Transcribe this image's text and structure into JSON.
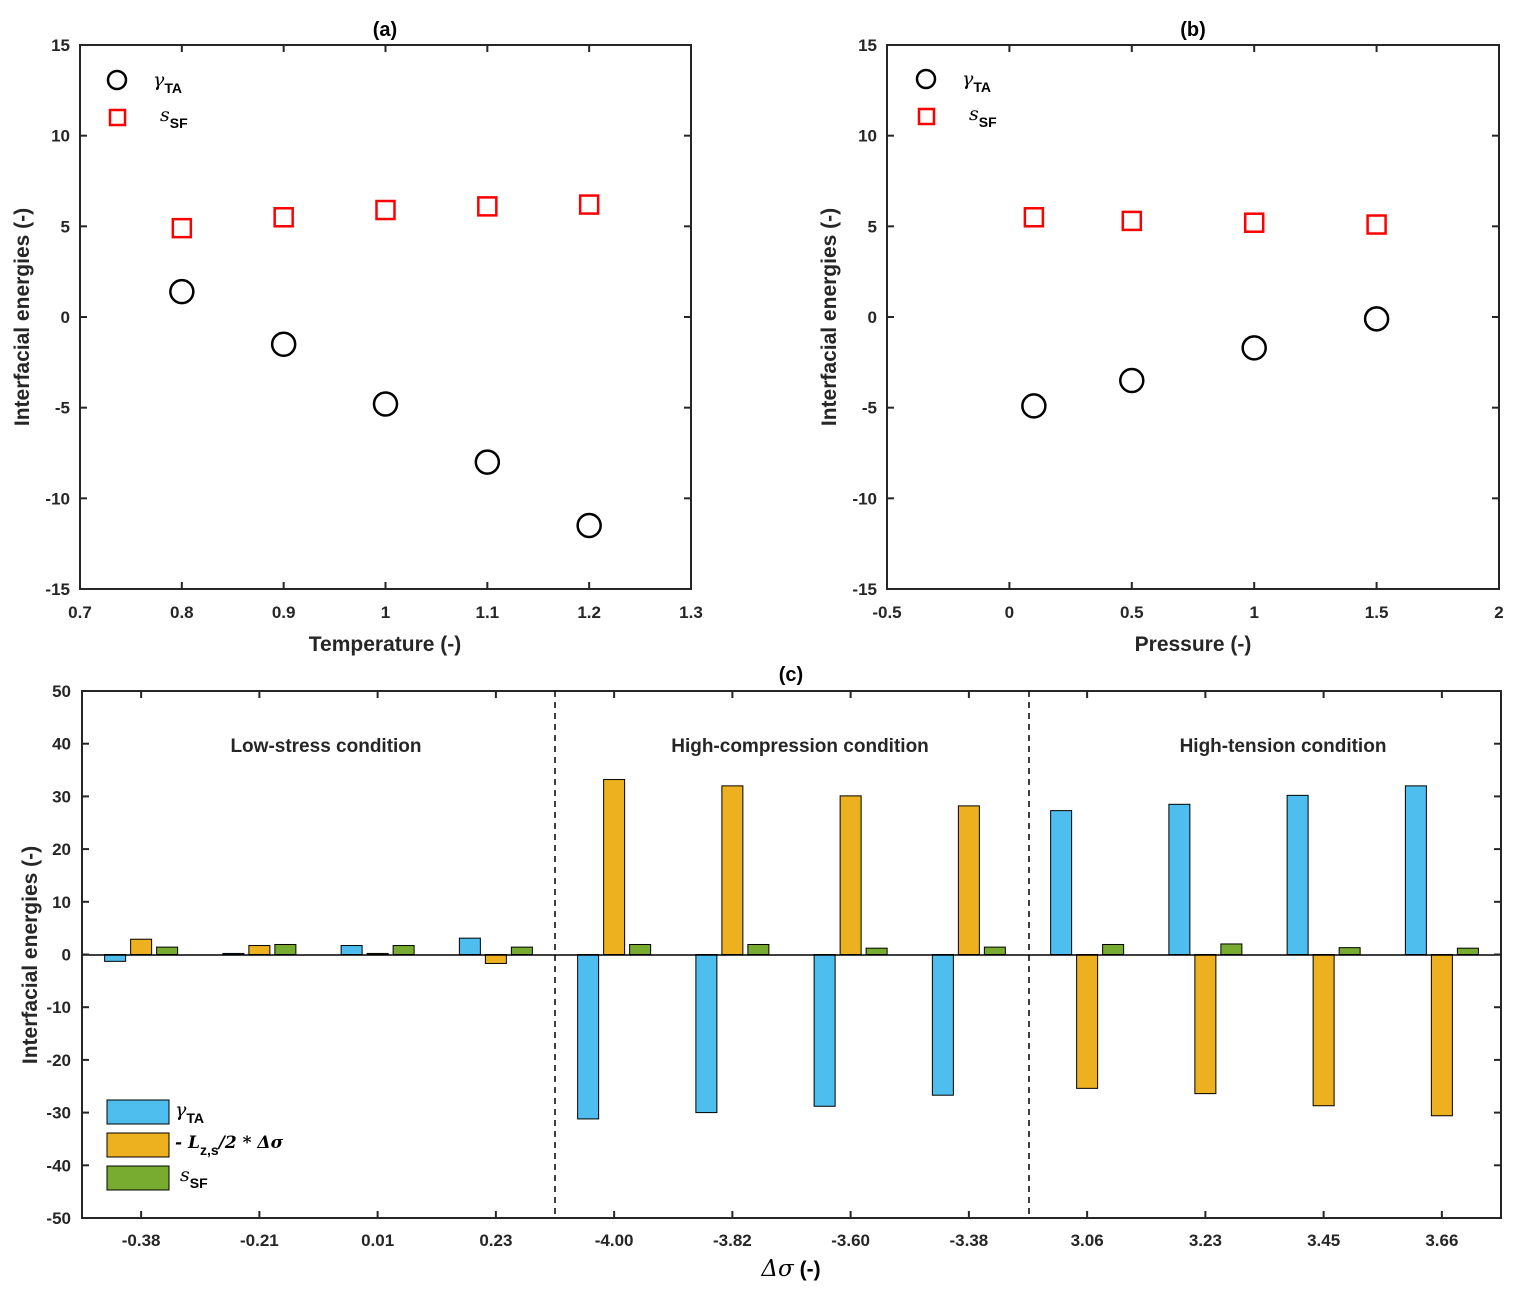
{
  "chart_data": [
    {
      "id": "a",
      "type": "scatter",
      "title": "(a)",
      "xlabel": "Temperature (-)",
      "ylabel": "Interfacial energies (-)",
      "xlim": [
        0.7,
        1.3
      ],
      "ylim": [
        -15,
        15
      ],
      "xticks": [
        0.7,
        0.8,
        0.9,
        1.0,
        1.1,
        1.2,
        1.3
      ],
      "xtick_labels": [
        "0.7",
        "0.8",
        "0.9",
        "1",
        "1.1",
        "1.2",
        "1.3"
      ],
      "yticks": [
        -15,
        -10,
        -5,
        0,
        5,
        10,
        15
      ],
      "ytick_labels": [
        "-15",
        "-10",
        "-5",
        "0",
        "5",
        "10",
        "15"
      ],
      "legend": {
        "position": "top-left",
        "entries": [
          {
            "sym": "γ",
            "sub": "TA"
          },
          {
            "sym": "s",
            "sub": "SF"
          }
        ]
      },
      "series": [
        {
          "name": "γTA",
          "marker": "circle",
          "color": "#000000",
          "x": [
            0.8,
            0.9,
            1.0,
            1.1,
            1.2
          ],
          "y": [
            1.4,
            -1.5,
            -4.8,
            -8.0,
            -11.5
          ]
        },
        {
          "name": "sSF",
          "marker": "square",
          "color": "#ff0000",
          "x": [
            0.8,
            0.9,
            1.0,
            1.1,
            1.2
          ],
          "y": [
            4.9,
            5.5,
            5.9,
            6.1,
            6.2
          ]
        }
      ]
    },
    {
      "id": "b",
      "type": "scatter",
      "title": "(b)",
      "xlabel": "Pressure (-)",
      "ylabel": "Interfacial energies (-)",
      "xlim": [
        -0.5,
        2
      ],
      "ylim": [
        -15,
        15
      ],
      "xticks": [
        -0.5,
        0,
        0.5,
        1.0,
        1.5,
        2.0
      ],
      "xtick_labels": [
        "-0.5",
        "0",
        "0.5",
        "1",
        "1.5",
        "2"
      ],
      "yticks": [
        -15,
        -10,
        -5,
        0,
        5,
        10,
        15
      ],
      "ytick_labels": [
        "-15",
        "-10",
        "-5",
        "0",
        "5",
        "10",
        "15"
      ],
      "legend": {
        "position": "top-left",
        "entries": [
          {
            "sym": "γ",
            "sub": "TA"
          },
          {
            "sym": "s",
            "sub": "SF"
          }
        ]
      },
      "series": [
        {
          "name": "γTA",
          "marker": "circle",
          "color": "#000000",
          "x": [
            0.1,
            0.5,
            1.0,
            1.5
          ],
          "y": [
            -4.9,
            -3.5,
            -1.7,
            -0.1
          ]
        },
        {
          "name": "sSF",
          "marker": "square",
          "color": "#ff0000",
          "x": [
            0.1,
            0.5,
            1.0,
            1.5
          ],
          "y": [
            5.5,
            5.3,
            5.2,
            5.1
          ]
        }
      ]
    },
    {
      "id": "c",
      "type": "bar",
      "title": "(c)",
      "xlabel_sym": "Δσ",
      "xlabel_rest": "(-)",
      "ylabel": "Interfacial energies (-)",
      "ylim": [
        -50,
        50
      ],
      "yticks": [
        -50,
        -40,
        -30,
        -20,
        -10,
        0,
        10,
        20,
        30,
        40,
        50
      ],
      "ytick_labels": [
        "-50",
        "-40",
        "-30",
        "-20",
        "-10",
        "0",
        "10",
        "20",
        "30",
        "40",
        "50"
      ],
      "categories": [
        "-0.38",
        "-0.21",
        "0.01",
        "0.23",
        "-4.00",
        "-3.82",
        "-3.60",
        "-3.38",
        "3.06",
        "3.23",
        "3.45",
        "3.66"
      ],
      "regions": [
        "Low-stress condition",
        "High-compression condition",
        "High-tension condition"
      ],
      "legend": {
        "position": "bottom-left",
        "entries": [
          {
            "sym": "γ",
            "sub": "TA",
            "extra": ""
          },
          {
            "sym": "- L",
            "sub": "z,s",
            "extra": "/2 * Δσ"
          },
          {
            "sym": "s",
            "sub": "SF",
            "extra": ""
          }
        ]
      },
      "series": [
        {
          "name": "γTA",
          "color": "#4dbeee",
          "values": [
            -1.3,
            0.2,
            1.7,
            3.1,
            -31.2,
            -30.0,
            -28.8,
            -26.7,
            27.3,
            28.5,
            30.2,
            32.0
          ]
        },
        {
          "name": "-Lz,s/2*Δσ",
          "color": "#edb120",
          "values": [
            2.9,
            1.7,
            0.2,
            -1.7,
            33.2,
            32.0,
            30.1,
            28.2,
            -25.4,
            -26.4,
            -28.7,
            -30.6
          ]
        },
        {
          "name": "sSF",
          "color": "#77ac30",
          "values": [
            1.4,
            1.9,
            1.7,
            1.4,
            1.9,
            1.9,
            1.2,
            1.4,
            1.9,
            2.0,
            1.3,
            1.2
          ]
        }
      ]
    }
  ]
}
